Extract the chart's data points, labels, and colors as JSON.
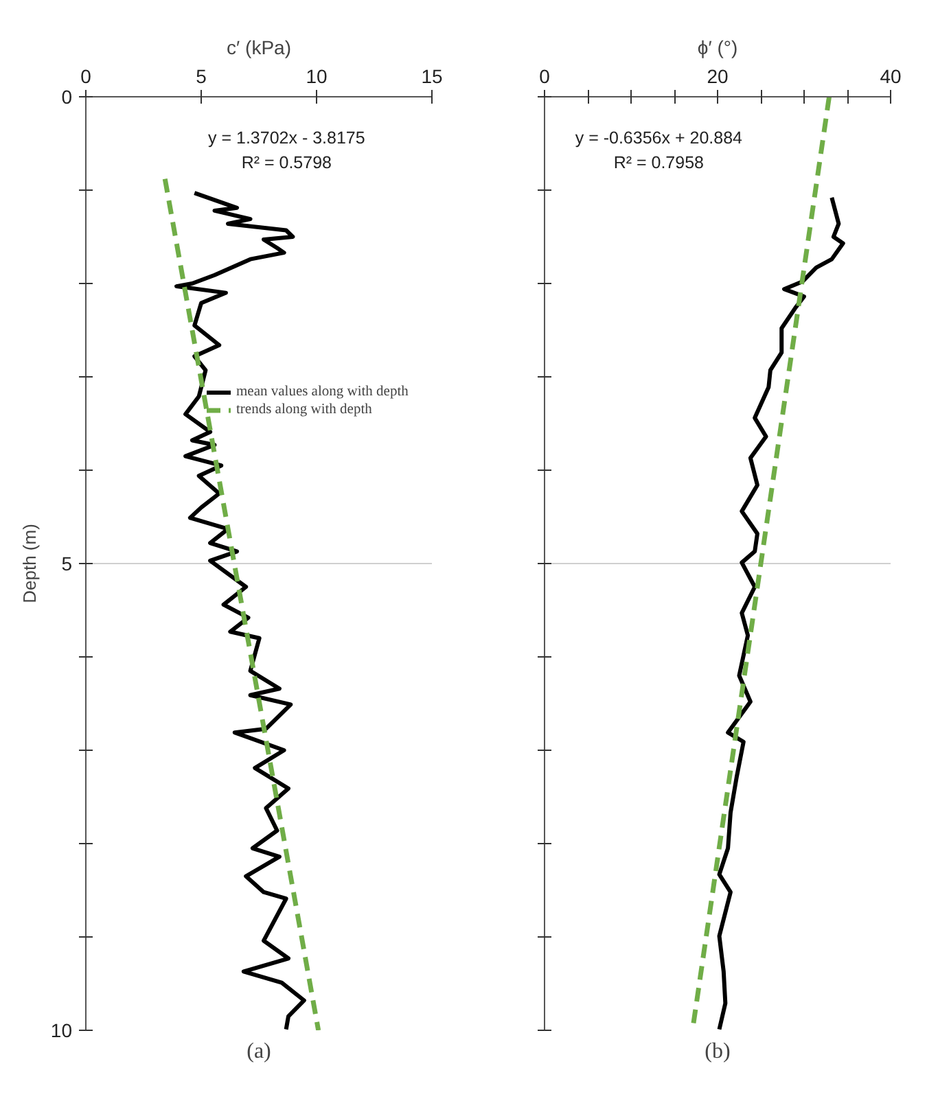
{
  "chart_data": [
    {
      "type": "line",
      "orientation": "horizontal",
      "xlabel": "c′ (kPa)",
      "ylabel": "Depth (m)",
      "xlim": [
        0,
        15
      ],
      "xticks": [
        0,
        5,
        10,
        15
      ],
      "ylim": [
        10,
        0
      ],
      "yticks": [
        0,
        {
          "value": 1,
          "label": null
        },
        {
          "value": 2,
          "label": null
        },
        {
          "value": 3,
          "label": null
        },
        {
          "value": 4,
          "label": null
        },
        5,
        {
          "value": 6,
          "label": null
        },
        {
          "value": 7,
          "label": null
        },
        {
          "value": 8,
          "label": null
        },
        {
          "value": 9,
          "label": null
        },
        10
      ],
      "grid": "y",
      "legend": "top right",
      "annotations": [
        "y = 1.3702x - 3.8175",
        "R² = 0.5798",
        "(a)"
      ],
      "series": [
        {
          "name": "mean values along with depth",
          "color": "#000000",
          "line_style": "solid",
          "x": [
            1.03,
            1.19,
            1.22,
            1.31,
            1.36,
            1.43,
            1.5,
            1.53,
            1.62,
            1.67,
            1.74,
            1.91,
            2.0,
            2.03,
            2.1,
            2.21,
            2.45,
            2.66,
            2.78,
            2.93,
            3.21,
            3.4,
            3.59,
            3.68,
            3.73,
            3.85,
            3.95,
            4.06,
            4.25,
            4.4,
            4.51,
            4.63,
            4.78,
            4.87,
            4.97,
            5.25,
            5.44,
            5.58,
            5.73,
            5.8,
            6.15,
            6.34,
            6.41,
            6.51,
            6.77,
            6.81,
            7.0,
            7.19,
            7.41,
            7.62,
            7.86,
            8.05,
            8.14,
            8.35,
            8.52,
            8.59,
            9.04,
            9.23,
            9.37,
            9.49,
            9.68,
            9.85,
            9.99
          ],
          "values": [
            4.71,
            6.55,
            5.58,
            7.13,
            6.16,
            8.68,
            8.97,
            7.71,
            8.29,
            8.59,
            7.13,
            5.58,
            4.61,
            3.93,
            6.07,
            5.0,
            4.71,
            5.78,
            4.71,
            5.19,
            4.9,
            4.32,
            5.39,
            4.61,
            5.58,
            4.32,
            5.87,
            4.9,
            5.78,
            5.0,
            4.52,
            6.16,
            5.39,
            6.55,
            5.39,
            6.94,
            5.97,
            7.04,
            6.26,
            7.52,
            7.13,
            8.39,
            7.13,
            8.88,
            7.81,
            6.45,
            8.59,
            7.33,
            8.78,
            7.81,
            8.29,
            7.23,
            8.39,
            6.94,
            7.71,
            8.68,
            7.71,
            8.78,
            6.84,
            8.49,
            9.46,
            8.78,
            8.68
          ]
        },
        {
          "name": "trends along with depth",
          "color": "#70ad47",
          "line_style": "dashed",
          "x": [
            0.88,
            10.0
          ],
          "values": [
            3.43,
            10.08
          ]
        }
      ]
    },
    {
      "type": "line",
      "orientation": "horizontal",
      "xlabel": "ϕ′ (°)",
      "xlim": [
        0,
        40
      ],
      "xticks": [
        0,
        {
          "value": 5,
          "label": null
        },
        {
          "value": 10,
          "label": null
        },
        {
          "value": 15,
          "label": null
        },
        20,
        {
          "value": 25,
          "label": null
        },
        {
          "value": 30,
          "label": null
        },
        {
          "value": 35,
          "label": null
        },
        40
      ],
      "ylim": [
        10,
        0
      ],
      "yticks": [
        0,
        {
          "value": 1,
          "label": null
        },
        {
          "value": 2,
          "label": null
        },
        {
          "value": 3,
          "label": null
        },
        {
          "value": 4,
          "label": null
        },
        5,
        {
          "value": 6,
          "label": null
        },
        {
          "value": 7,
          "label": null
        },
        {
          "value": 8,
          "label": null
        },
        {
          "value": 9,
          "label": null
        },
        10
      ],
      "tick_labels": "x",
      "grid": "y",
      "annotations": [
        "y = -0.6356x + 20.884",
        "R² = 0.7958",
        "(b)"
      ],
      "series": [
        {
          "color": "#000000",
          "line_style": "solid",
          "x": [
            1.08,
            1.36,
            1.5,
            1.57,
            1.74,
            1.83,
            1.98,
            2.06,
            2.14,
            2.26,
            2.48,
            2.74,
            2.93,
            3.11,
            3.44,
            3.64,
            3.87,
            4.16,
            4.44,
            4.68,
            4.87,
            4.99,
            5.25,
            5.53,
            5.77,
            6.2,
            6.48,
            6.81,
            6.91,
            7.29,
            7.67,
            8.05,
            8.33,
            8.52,
            8.99,
            9.37,
            9.71,
            9.99
          ],
          "values": [
            33.2,
            34.0,
            33.4,
            34.5,
            33.2,
            31.4,
            29.8,
            27.7,
            30.0,
            29.0,
            27.4,
            27.4,
            26.1,
            25.9,
            24.3,
            25.6,
            23.8,
            24.6,
            22.8,
            24.6,
            24.3,
            22.8,
            24.3,
            22.8,
            23.5,
            22.5,
            23.8,
            21.2,
            23.0,
            22.2,
            21.5,
            21.2,
            20.2,
            21.5,
            20.2,
            20.7,
            20.9,
            20.2
          ]
        },
        {
          "color": "#70ad47",
          "line_style": "dashed",
          "x": [
            0.0,
            10.0
          ],
          "values": [
            32.9,
            17.1
          ]
        }
      ]
    }
  ]
}
